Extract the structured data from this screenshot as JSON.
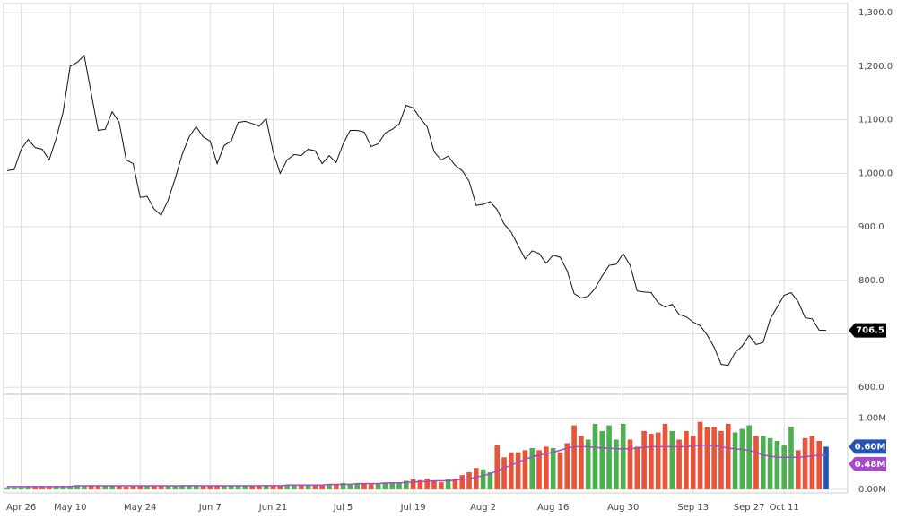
{
  "chart_data": {
    "type": "stock",
    "categories": [
      null,
      null,
      "Apr 26",
      null,
      null,
      null,
      null,
      null,
      null,
      "May 10",
      null,
      null,
      null,
      null,
      null,
      null,
      null,
      null,
      null,
      "May 24",
      null,
      null,
      null,
      null,
      null,
      null,
      null,
      null,
      null,
      "Jun 7",
      null,
      null,
      null,
      null,
      null,
      null,
      null,
      null,
      "Jun 21",
      null,
      null,
      null,
      null,
      null,
      null,
      null,
      null,
      null,
      "Jul 5",
      null,
      null,
      null,
      null,
      null,
      null,
      null,
      null,
      null,
      "Jul 19",
      null,
      null,
      null,
      null,
      null,
      null,
      null,
      null,
      null,
      "Aug 2",
      null,
      null,
      null,
      null,
      null,
      null,
      null,
      null,
      null,
      "Aug 16",
      null,
      null,
      null,
      null,
      null,
      null,
      null,
      null,
      null,
      "Aug 30",
      null,
      null,
      null,
      null,
      null,
      null,
      null,
      null,
      null,
      "Sep 13",
      null,
      null,
      null,
      null,
      null,
      null,
      null,
      "Sep 27",
      null,
      null,
      null,
      null,
      "Oct 11",
      null,
      null,
      null,
      null,
      null,
      null
    ],
    "price": {
      "color": "#111111",
      "values": [
        1005,
        1007,
        1045,
        1063,
        1048,
        1045,
        1025,
        1065,
        1115,
        1200,
        1207,
        1220,
        1150,
        1080,
        1082,
        1115,
        1095,
        1025,
        1018,
        955,
        957,
        933,
        922,
        950,
        990,
        1035,
        1068,
        1087,
        1068,
        1060,
        1018,
        1052,
        1060,
        1095,
        1097,
        1093,
        1088,
        1102,
        1040,
        1000,
        1025,
        1035,
        1033,
        1045,
        1042,
        1018,
        1033,
        1020,
        1055,
        1080,
        1080,
        1077,
        1050,
        1055,
        1075,
        1082,
        1092,
        1127,
        1122,
        1103,
        1087,
        1040,
        1025,
        1032,
        1015,
        1005,
        985,
        940,
        942,
        947,
        932,
        905,
        890,
        865,
        840,
        855,
        850,
        832,
        847,
        843,
        818,
        775,
        767,
        770,
        785,
        808,
        828,
        830,
        850,
        828,
        780,
        778,
        777,
        758,
        750,
        755,
        736,
        732,
        722,
        715,
        698,
        675,
        643,
        641,
        665,
        677,
        697,
        680,
        684,
        727,
        750,
        772,
        777,
        760,
        730,
        728,
        707,
        706.5
      ],
      "ylim": [
        587,
        1317
      ],
      "yticks": [
        {
          "value": 600,
          "label": "600.0"
        },
        {
          "value": 700,
          "label": "700.0"
        },
        {
          "value": 800,
          "label": "800.0"
        },
        {
          "value": 900,
          "label": "900.0"
        },
        {
          "value": 1000,
          "label": "1,000.0"
        },
        {
          "value": 1100,
          "label": "1,100.0"
        },
        {
          "value": 1200,
          "label": "1,200.0"
        },
        {
          "value": 1300,
          "label": "1,300.0"
        }
      ]
    },
    "volume": {
      "up_color": "#4caf50",
      "down_color": "#e8533a",
      "last_color": "#2453b3",
      "values": [
        0.03,
        0.03,
        0.03,
        0.04,
        0.04,
        0.04,
        0.04,
        0.05,
        0.05,
        0.05,
        0.06,
        0.05,
        0.05,
        0.05,
        0.05,
        0.05,
        0.05,
        0.04,
        0.05,
        0.05,
        0.05,
        0.05,
        0.05,
        0.05,
        0.05,
        0.06,
        0.06,
        0.06,
        0.05,
        0.05,
        0.05,
        0.05,
        0.05,
        0.05,
        0.06,
        0.05,
        0.06,
        0.06,
        0.06,
        0.06,
        0.06,
        0.06,
        0.06,
        0.07,
        0.06,
        0.06,
        0.07,
        0.07,
        0.09,
        0.08,
        0.08,
        0.08,
        0.07,
        0.08,
        0.09,
        0.1,
        0.1,
        0.12,
        0.14,
        0.13,
        0.15,
        0.12,
        0.1,
        0.14,
        0.15,
        0.2,
        0.24,
        0.3,
        0.28,
        0.24,
        0.62,
        0.45,
        0.52,
        0.52,
        0.55,
        0.58,
        0.55,
        0.6,
        0.58,
        0.52,
        0.65,
        0.9,
        0.75,
        0.7,
        0.92,
        0.82,
        0.9,
        0.7,
        0.92,
        0.7,
        0.6,
        0.82,
        0.78,
        0.8,
        0.92,
        0.82,
        0.7,
        0.82,
        0.75,
        0.95,
        0.88,
        0.88,
        0.82,
        0.92,
        0.8,
        0.85,
        0.9,
        0.75,
        0.75,
        0.72,
        0.68,
        0.62,
        0.88,
        0.55,
        0.72,
        0.75,
        0.68,
        0.6
      ],
      "last_label": "0.60M",
      "ma_color": "#a64ac9",
      "ma_values": [
        0.04,
        0.04,
        0.04,
        0.04,
        0.04,
        0.04,
        0.04,
        0.04,
        0.04,
        0.04,
        0.05,
        0.05,
        0.05,
        0.05,
        0.05,
        0.05,
        0.05,
        0.05,
        0.05,
        0.05,
        0.05,
        0.05,
        0.05,
        0.05,
        0.05,
        0.05,
        0.05,
        0.05,
        0.05,
        0.05,
        0.05,
        0.05,
        0.05,
        0.05,
        0.05,
        0.05,
        0.05,
        0.05,
        0.05,
        0.05,
        0.06,
        0.06,
        0.06,
        0.06,
        0.06,
        0.06,
        0.07,
        0.07,
        0.07,
        0.07,
        0.08,
        0.08,
        0.08,
        0.08,
        0.09,
        0.09,
        0.09,
        0.1,
        0.1,
        0.11,
        0.11,
        0.12,
        0.12,
        0.12,
        0.13,
        0.14,
        0.15,
        0.17,
        0.19,
        0.22,
        0.26,
        0.3,
        0.34,
        0.38,
        0.42,
        0.46,
        0.48,
        0.5,
        0.52,
        0.55,
        0.58,
        0.6,
        0.6,
        0.6,
        0.59,
        0.58,
        0.58,
        0.57,
        0.57,
        0.57,
        0.58,
        0.59,
        0.6,
        0.6,
        0.6,
        0.6,
        0.6,
        0.6,
        0.61,
        0.62,
        0.62,
        0.61,
        0.6,
        0.58,
        0.57,
        0.56,
        0.55,
        0.52,
        0.48,
        0.47,
        0.45,
        0.45,
        0.45,
        0.45,
        0.46,
        0.47,
        0.48,
        0.48
      ],
      "ma_last_label": "0.48M",
      "ylim": [
        -0.05,
        1.31
      ],
      "yticks": [
        {
          "value": 0,
          "label": "0.00M"
        },
        {
          "value": 1,
          "label": "1.00M"
        }
      ]
    },
    "grid": true
  }
}
